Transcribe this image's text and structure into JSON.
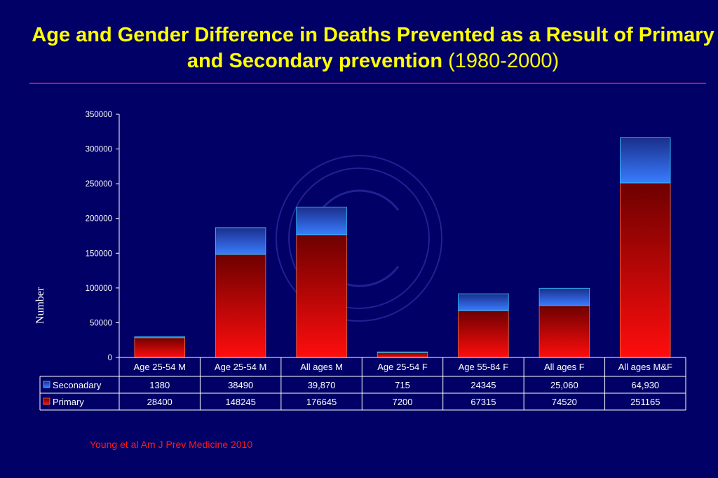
{
  "title": {
    "main": "Age and Gender Difference in Deaths Prevented as a Result of Primary and Secondary prevention",
    "period": "(1980-2000)"
  },
  "citation": "Young  et al Am J Prev Medicine 2010",
  "colors": {
    "background": "#000066",
    "title": "#ffff00",
    "rule": "#cc1a1a",
    "primary": "#e60000",
    "secondary": "#3366ff",
    "citation": "#ff1a1a"
  },
  "chart_data": {
    "type": "bar",
    "stacked": true,
    "ylabel": "Number",
    "xlabel": "",
    "ylim": [
      0,
      350000
    ],
    "yticks": [
      0,
      50000,
      100000,
      150000,
      200000,
      250000,
      300000,
      350000
    ],
    "ytick_labels": [
      "0",
      "50000",
      "100000",
      "150000",
      "200000",
      "250000",
      "300000",
      "350000"
    ],
    "categories": [
      "Age 25-54 M",
      "Age 25-54 M",
      "All ages M",
      "Age 25-54 F",
      "Age 55-84 F",
      "All ages F",
      "All ages M&F"
    ],
    "series": [
      {
        "name": "Primary",
        "values": [
          28400,
          148245,
          176645,
          7200,
          67315,
          74520,
          251165
        ],
        "labels": [
          "28400",
          "148245",
          "176645",
          "7200",
          "67315",
          "74520",
          "251165"
        ]
      },
      {
        "name": "Seconadary",
        "values": [
          1380,
          38490,
          39870,
          715,
          24345,
          25060,
          64930
        ],
        "labels": [
          "1380",
          "38490",
          "39,870",
          "715",
          "24345",
          "25,060",
          "64,930"
        ]
      }
    ],
    "data_table": true,
    "grid": false,
    "legend": "data-table-left"
  }
}
